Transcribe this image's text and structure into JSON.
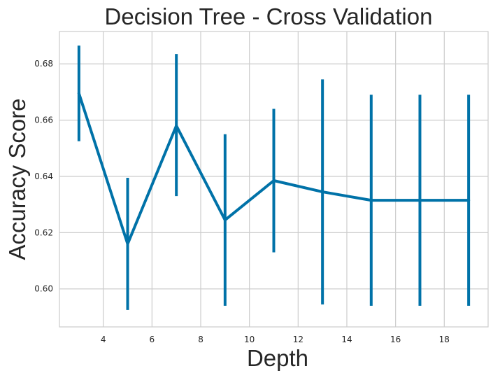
{
  "chart_data": {
    "type": "line",
    "title": "Decision Tree - Cross Validation",
    "xlabel": "Depth",
    "ylabel": "Accuracy Score",
    "xlim": [
      2.2,
      19.8
    ],
    "ylim": [
      0.5865,
      0.6915
    ],
    "xticks": [
      4,
      6,
      8,
      10,
      12,
      14,
      16,
      18
    ],
    "yticks": [
      0.6,
      0.62,
      0.64,
      0.66,
      0.68
    ],
    "xtick_labels": [
      "4",
      "6",
      "8",
      "10",
      "12",
      "14",
      "16",
      "18"
    ],
    "ytick_labels": [
      "0.60",
      "0.62",
      "0.64",
      "0.66",
      "0.68"
    ],
    "grid": true,
    "color": "#0072a8",
    "series": [
      {
        "x": [
          3,
          5,
          7,
          9,
          11,
          13,
          15,
          17,
          19
        ],
        "y": [
          0.6695,
          0.616,
          0.658,
          0.6245,
          0.6385,
          0.6345,
          0.6315,
          0.6315,
          0.6315
        ],
        "err_low": [
          0.6525,
          0.5925,
          0.633,
          0.594,
          0.613,
          0.5945,
          0.594,
          0.594,
          0.594
        ],
        "err_high": [
          0.6865,
          0.6395,
          0.6835,
          0.655,
          0.664,
          0.6745,
          0.669,
          0.669,
          0.669
        ]
      }
    ]
  }
}
